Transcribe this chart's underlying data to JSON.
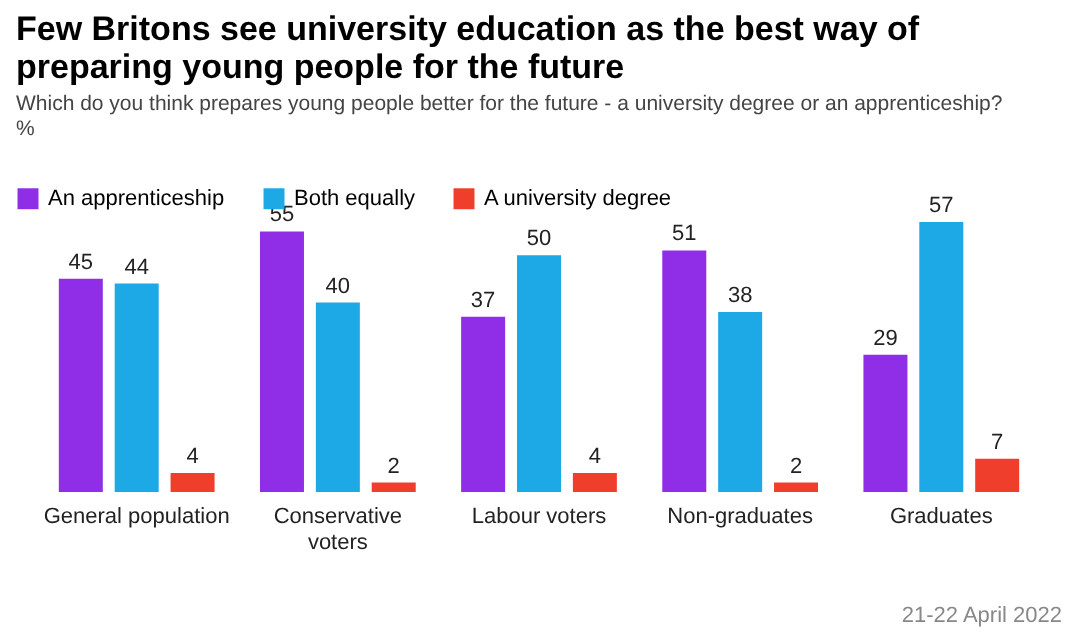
{
  "chart_data": {
    "type": "bar",
    "title": "Few Britons see university education as the best way of preparing young people for the future",
    "subtitle": "Which do you think prepares young people better for the future - a university degree or an apprenticeship?",
    "categories": [
      "General population",
      "Conservative voters",
      "Labour voters",
      "Non-graduates",
      "Graduates"
    ],
    "series": [
      {
        "name": "An apprenticeship",
        "color": "#8f2ee6",
        "values": [
          45,
          55,
          37,
          51,
          29
        ]
      },
      {
        "name": "Both equally",
        "color": "#1ca9e6",
        "values": [
          44,
          40,
          50,
          38,
          57
        ]
      },
      {
        "name": "A university degree",
        "color": "#ef3e2c",
        "values": [
          4,
          2,
          4,
          2,
          7
        ]
      }
    ],
    "data_labels": true,
    "legend": "top left",
    "tick_labels": "x",
    "grid": false,
    "annotations": [
      "%",
      "21-22 April 2022"
    ]
  }
}
